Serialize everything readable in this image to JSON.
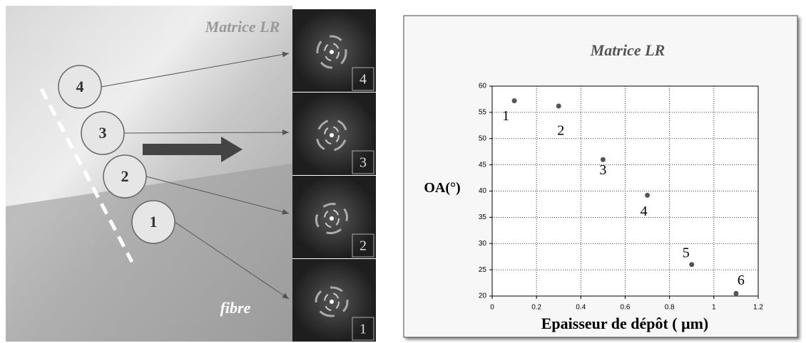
{
  "chart_data": {
    "type": "scatter",
    "title": "Matrice LR",
    "x_label": "Epaisseur de dépôt ( μm)",
    "y_label": "OA(°)",
    "x": [
      0.1,
      0.3,
      0.5,
      0.7,
      0.9,
      1.1
    ],
    "values": [
      57.2,
      56.2,
      46,
      39.2,
      26,
      20.5
    ],
    "point_labels": [
      "1",
      "2",
      "3",
      "4",
      "5",
      "6"
    ],
    "color": "#555555",
    "xlim": [
      0,
      1.2
    ],
    "xticks": [
      0,
      0.2,
      0.4,
      0.6,
      0.8,
      1,
      1.2
    ],
    "ylim": [
      20,
      60
    ],
    "yticks": [
      20,
      25,
      30,
      35,
      40,
      45,
      50,
      55,
      60
    ],
    "grid": true
  },
  "micrograph": {
    "label_top": "Matrice LR",
    "label_bottom": "fibre",
    "circles": [
      "4",
      "3",
      "2",
      "1"
    ],
    "panels": [
      "4",
      "3",
      "2",
      "1"
    ]
  }
}
